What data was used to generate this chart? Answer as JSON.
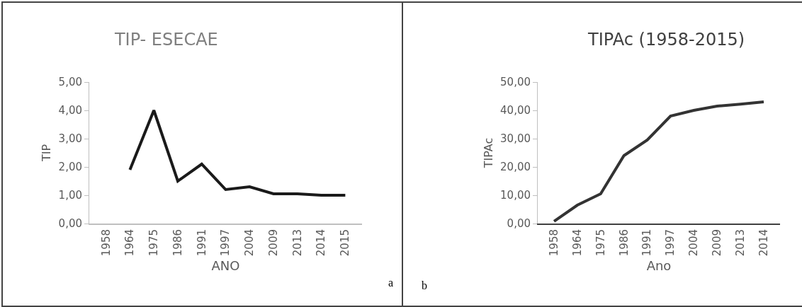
{
  "chart_data": [
    {
      "type": "line",
      "title": "TIP- ESECAE",
      "xlabel": "ANO",
      "ylabel": "TIP",
      "categories": [
        "1958",
        "1964",
        "1975",
        "1986",
        "1991",
        "1997",
        "2004",
        "2009",
        "2013",
        "2014",
        "2015"
      ],
      "series": [
        {
          "color": "#1a1a1a",
          "values": [
            null,
            1.9,
            4.0,
            1.5,
            2.1,
            1.2,
            1.3,
            1.05,
            1.05,
            1.0,
            1.0
          ]
        }
      ],
      "ylim": [
        0,
        5
      ],
      "yticks": [
        {
          "value": 0,
          "label": "0,00"
        },
        {
          "value": 1,
          "label": "1,00"
        },
        {
          "value": 2,
          "label": "2,00"
        },
        {
          "value": 3,
          "label": "3,00"
        },
        {
          "value": 4,
          "label": "4,00"
        },
        {
          "value": 5,
          "label": "5,00"
        }
      ],
      "grid": false,
      "marker": "none",
      "annotations": [
        "a"
      ]
    },
    {
      "type": "line",
      "title": "TIPAc (1958-2015)",
      "xlabel": "Ano",
      "ylabel": "TIPAc",
      "categories": [
        "1958",
        "1964",
        "1975",
        "1986",
        "1991",
        "1997",
        "2004",
        "2009",
        "2013",
        "2014"
      ],
      "series": [
        {
          "color": "#333333",
          "values": [
            0.8,
            6.5,
            10.5,
            24,
            29.5,
            38,
            40,
            41.5,
            42.2,
            43
          ]
        }
      ],
      "ylim": [
        0,
        50
      ],
      "yticks": [
        {
          "value": 0,
          "label": "0,00"
        },
        {
          "value": 10,
          "label": "10,00"
        },
        {
          "value": 20,
          "label": "20,00"
        },
        {
          "value": 30,
          "label": "30,00"
        },
        {
          "value": 40,
          "label": "40,00"
        },
        {
          "value": 50,
          "label": "50,00"
        }
      ],
      "grid": false,
      "marker": "none",
      "annotations": [
        "b"
      ]
    }
  ]
}
